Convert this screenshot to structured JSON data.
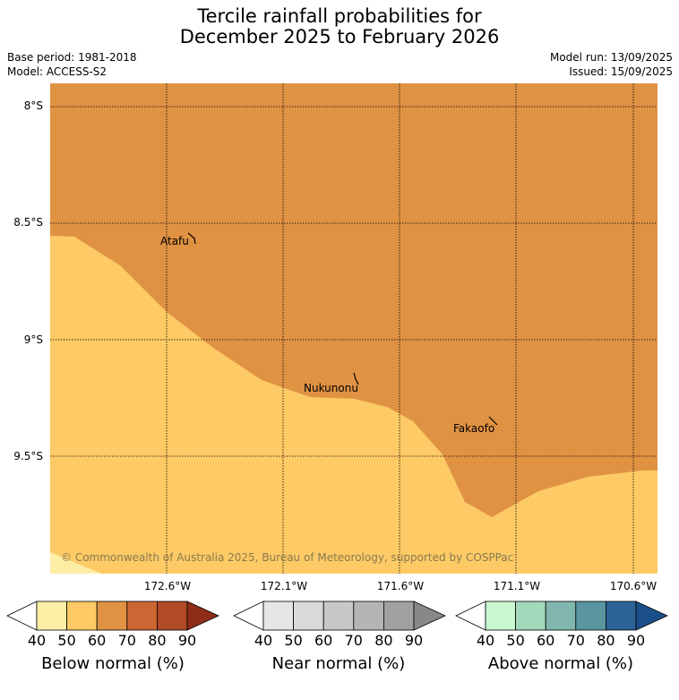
{
  "title_line1": "Tercile rainfall probabilities for",
  "title_line2": "December 2025 to February 2026",
  "base_period": "Base period: 1981-2018",
  "model": "Model: ACCESS-S2",
  "model_run": "Model run: 13/09/2025",
  "issued": "Issued: 15/09/2025",
  "copyright": "© Commonwealth of Australia 2025, Bureau of Meteorology, supported by COSPPac",
  "lat_labels": [
    "8°S",
    "8.5°S",
    "9°S",
    "9.5°S"
  ],
  "lon_labels": [
    "172.6°W",
    "172.1°W",
    "171.6°W",
    "171.1°W",
    "170.6°W"
  ],
  "places": [
    "Atafu",
    "Nukunonu",
    "Fakaofo"
  ],
  "colors": {
    "below_60_70": "#e09243",
    "below_50_60": "#fdca65"
  },
  "colorbars": [
    {
      "label": "Below normal (%)",
      "ticks": [
        "40",
        "50",
        "60",
        "70",
        "80",
        "90"
      ],
      "colors": [
        "#ffffff",
        "#fdeea6",
        "#fdca65",
        "#e09243",
        "#cc6633",
        "#b04a27",
        "#8f2d16"
      ]
    },
    {
      "label": "Near normal (%)",
      "ticks": [
        "40",
        "50",
        "60",
        "70",
        "80",
        "90"
      ],
      "colors": [
        "#ffffff",
        "#e6e6e6",
        "#d9d9d9",
        "#c8c8c8",
        "#b5b5b5",
        "#a1a1a1",
        "#888888"
      ]
    },
    {
      "label": "Above normal (%)",
      "ticks": [
        "40",
        "50",
        "60",
        "70",
        "80",
        "90"
      ],
      "colors": [
        "#ffffff",
        "#c8f7d0",
        "#a3d8bb",
        "#80b6ae",
        "#5a96a0",
        "#2c6396",
        "#1a4f8a"
      ]
    }
  ]
}
